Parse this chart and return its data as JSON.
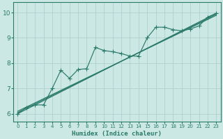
{
  "xlabel": "Humidex (Indice chaleur)",
  "xlim": [
    -0.5,
    23.5
  ],
  "ylim": [
    5.7,
    10.4
  ],
  "xticks": [
    0,
    1,
    2,
    3,
    4,
    5,
    6,
    7,
    8,
    9,
    10,
    11,
    12,
    13,
    14,
    15,
    16,
    17,
    18,
    19,
    20,
    21,
    22,
    23
  ],
  "yticks": [
    6,
    7,
    8,
    9,
    10
  ],
  "bg_color": "#cce8e4",
  "grid_color": "#aaccca",
  "line_color": "#2a7a6a",
  "line1_x": [
    0,
    1,
    2,
    3,
    4,
    5,
    6,
    7,
    8,
    9,
    10,
    11,
    12,
    13,
    14,
    15,
    16,
    17,
    18,
    19,
    20,
    21,
    22,
    23
  ],
  "line1_y": [
    6.0,
    6.25,
    6.35,
    6.35,
    7.0,
    7.72,
    7.4,
    7.75,
    7.78,
    8.62,
    8.5,
    8.45,
    8.38,
    8.28,
    8.28,
    9.0,
    9.42,
    9.42,
    9.32,
    9.28,
    9.35,
    9.47,
    9.82,
    9.97
  ],
  "line2_x": [
    0,
    23
  ],
  "line2_y": [
    6.0,
    9.97
  ],
  "line3_x": [
    0,
    23
  ],
  "line3_y": [
    6.05,
    9.93
  ],
  "line4_x": [
    0,
    23
  ],
  "line4_y": [
    6.1,
    9.89
  ]
}
